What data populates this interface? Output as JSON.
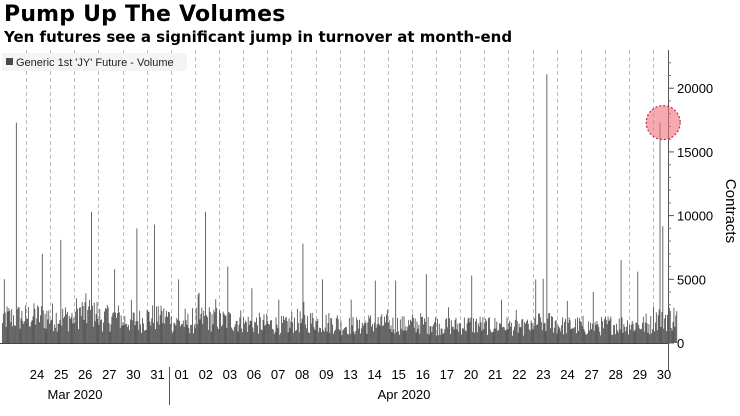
{
  "title": "Pump Up The Volumes",
  "subtitle": "Yen futures see a significant jump in turnover at month-end",
  "chart_data": {
    "type": "bar",
    "title": "Pump Up The Volumes",
    "subtitle": "Yen futures see a significant jump in turnover at month-end",
    "ylabel": "Contracts",
    "ylim": [
      0,
      23000
    ],
    "yticks": [
      0,
      5000,
      10000,
      15000,
      20000
    ],
    "grid": "vertical dashed",
    "legend": {
      "position": "top-left",
      "entries": [
        "Generic 1st 'JY' Future - Volume"
      ]
    },
    "bar_color": "#4a4a4a",
    "highlight_color": "#f0707a",
    "x_tick_labels": [
      "24",
      "25",
      "26",
      "27",
      "30",
      "31",
      "01",
      "02",
      "03",
      "06",
      "07",
      "08",
      "09",
      "13",
      "14",
      "15",
      "16",
      "17",
      "20",
      "21",
      "22",
      "23",
      "24",
      "27",
      "28",
      "29",
      "30"
    ],
    "x_month_labels": [
      "Mar 2020",
      "Apr 2020"
    ],
    "series": [
      {
        "name": "Generic 1st 'JY' Future - Volume",
        "x": [
          "Mar 23",
          "Mar 24",
          "Mar 25",
          "Mar 26",
          "Mar 27",
          "Mar 30",
          "Mar 31",
          "Apr 01",
          "Apr 02",
          "Apr 03",
          "Apr 06",
          "Apr 07",
          "Apr 08",
          "Apr 09",
          "Apr 13",
          "Apr 14",
          "Apr 15",
          "Apr 16",
          "Apr 17",
          "Apr 20",
          "Apr 21",
          "Apr 22",
          "Apr 23",
          "Apr 24",
          "Apr 27",
          "Apr 28",
          "Apr 29",
          "Apr 30"
        ],
        "peak_values": [
          17300,
          7000,
          8100,
          10300,
          5800,
          9000,
          9300,
          5000,
          10300,
          6000,
          4300,
          3400,
          7800,
          5000,
          3400,
          4900,
          4900,
          5400,
          2800,
          5300,
          3400,
          2600,
          21100,
          3300,
          4000,
          6500,
          5600,
          17300
        ],
        "typical_values": [
          2500,
          2600,
          2500,
          3000,
          2500,
          2200,
          2500,
          2000,
          2400,
          2200,
          1900,
          1800,
          2100,
          2000,
          1700,
          1900,
          1800,
          1900,
          1700,
          1800,
          1700,
          1600,
          2000,
          1700,
          1600,
          1800,
          1800,
          2500
        ]
      }
    ],
    "annotation": {
      "type": "circle-highlight",
      "x": "Apr 30",
      "y": 17300
    }
  }
}
